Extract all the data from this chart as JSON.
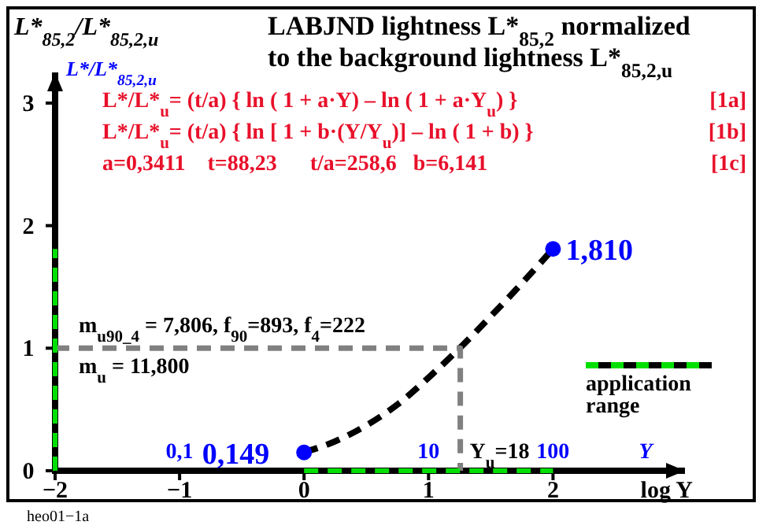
{
  "chart_data": {
    "type": "line",
    "title": "LABJND lightness L*$_{85,2}$ normalized\nto the background lightness L*$_{85,2,u}$",
    "ylabel": "L*$_{85,2}$/L*$_{85,2,u}$",
    "xlabel": "log Y",
    "x2label": "Y",
    "xlim": [
      -2,
      3.06
    ],
    "ylim": [
      0,
      3.25
    ],
    "x2lim": [
      0.01,
      4140
    ],
    "log": "x2",
    "xticks": [
      {
        "value": -2,
        "label": "−2"
      },
      {
        "value": -1,
        "label": "−1"
      },
      0,
      1,
      2
    ],
    "yticks": [
      0,
      1,
      2,
      3
    ],
    "x2ticks": [
      {
        "value": 0.1,
        "label": "0,1"
      },
      10,
      100
    ],
    "grid": false,
    "legend": "bottom right",
    "series": [
      {
        "color": "#000000",
        "line_style": "dashed",
        "x": [
          0,
          0.25,
          0.5,
          0.75,
          1,
          1.25,
          1.5,
          1.75,
          2
        ],
        "values": [
          0.15,
          0.24,
          0.37,
          0.54,
          0.76,
          1.0,
          1.26,
          1.53,
          1.81
        ]
      },
      {
        "color": "#808080",
        "line_style": "dashed",
        "x": [
          -2,
          1.255,
          1.255
        ],
        "values": [
          1,
          1,
          0
        ]
      },
      {
        "name": "application range",
        "color": "#00e000",
        "line_style": "dashed",
        "x": [
          0,
          2
        ],
        "values": [
          0,
          0
        ]
      },
      {
        "color": "#00e000",
        "line_style": "dashed",
        "x": [
          -2,
          -2
        ],
        "values": [
          0,
          1.81
        ]
      },
      {
        "type": "scatter",
        "color": "#0000ff",
        "marker": "circle",
        "x": [
          0,
          2
        ],
        "values": [
          0.149,
          1.81
        ],
        "value_labels": [
          "0,149",
          "1,810"
        ]
      }
    ],
    "annotations": [
      "L*/L*$_{85,2,u}$",
      "L*/L*$_{u}$= (t/a) { ln ( 1 + a·Y) – ln ( 1 + a·Y$_{u}$) }",
      "[1a]",
      "L*/L*$_{u}$= (t/a) { ln [ 1 + b·(Y/Y$_{u}$)] – ln ( 1 + b) }",
      "[1b]",
      "a=0,3411    t=88,23      t/a=258,6   b=6,141",
      "[1c]",
      "m$_{u90_4}$ = 7,806, f$_{90}$=893, f$_{4}$=222",
      "m$_{u}$ = 11,800",
      {
        "text": "Y$_{u}$=18",
        "x": 1.255,
        "y": 0
      },
      "heo01−1a"
    ]
  }
}
